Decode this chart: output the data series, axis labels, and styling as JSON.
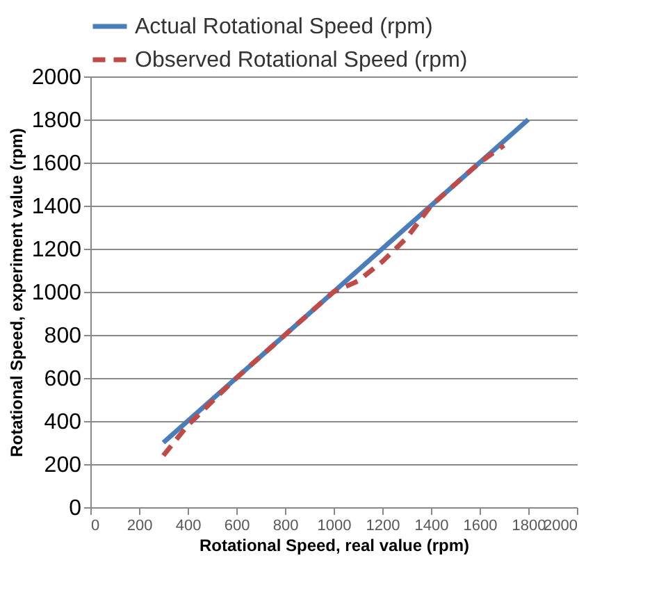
{
  "chart_data": {
    "type": "line",
    "xlabel": "Rotational  Speed, real value (rpm)",
    "ylabel": "Rotational Speed, experiment value (rpm)",
    "x": [
      300,
      400,
      500,
      600,
      700,
      800,
      900,
      1000,
      1100,
      1200,
      1300,
      1400,
      1500,
      1600,
      1700,
      1800
    ],
    "series": [
      {
        "name": "Actual Rotational Speed (rpm)",
        "color": "#4a7ebb",
        "line_style": "solid",
        "values": [
          300,
          400,
          500,
          600,
          700,
          800,
          900,
          1000,
          1100,
          1200,
          1300,
          1400,
          1500,
          1600,
          1700,
          1800
        ]
      },
      {
        "name": "Observed Rotational Speed (rpm)",
        "color": "#be4b48",
        "line_style": "dashed",
        "values": [
          240,
          380,
          490,
          600,
          700,
          800,
          900,
          1000,
          1050,
          1140,
          1250,
          1400,
          1500,
          1600,
          1680,
          null
        ]
      }
    ],
    "xlim": [
      0,
      2000
    ],
    "xticks": [
      0,
      200,
      400,
      600,
      800,
      1000,
      1200,
      1400,
      1600,
      1800,
      2000
    ],
    "ylim": [
      0,
      2000
    ],
    "yticks": [
      0,
      200,
      400,
      600,
      800,
      1000,
      1200,
      1400,
      1600,
      1800,
      2000
    ],
    "grid": "y",
    "legend": "top",
    "marker": "none"
  }
}
